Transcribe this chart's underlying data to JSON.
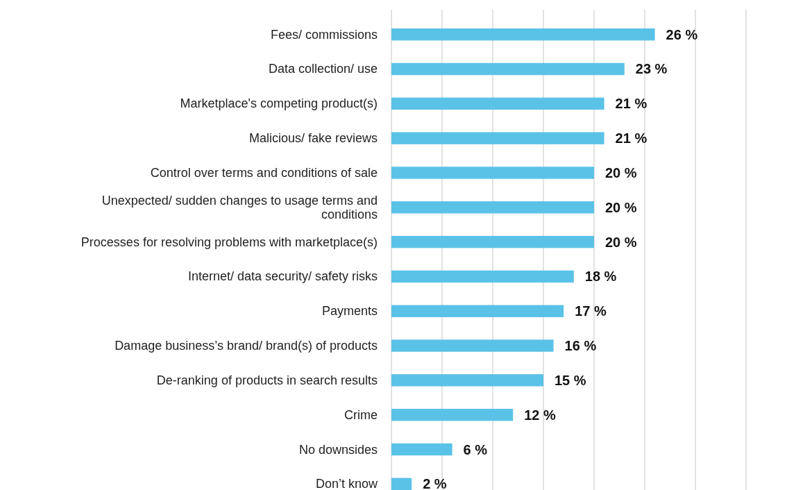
{
  "chart_data": {
    "type": "bar",
    "orientation": "horizontal",
    "categories": [
      "Fees/ commissions",
      "Data collection/ use",
      "Marketplace's competing product(s)",
      "Malicious/ fake reviews",
      "Control over terms and conditions of sale",
      "Unexpected/ sudden changes to usage terms and conditions",
      "Processes for resolving problems with marketplace(s)",
      "Internet/ data security/ safety risks",
      "Payments",
      "Damage business’s brand/ brand(s) of products",
      "De-ranking of products in search results",
      "Crime",
      "No downsides",
      "Don’t know"
    ],
    "values": [
      26,
      23,
      21,
      21,
      20,
      20,
      20,
      18,
      17,
      16,
      15,
      12,
      6,
      2
    ],
    "value_labels": [
      "26 %",
      "23 %",
      "21 %",
      "21 %",
      "20 %",
      "20 %",
      "20 %",
      "18 %",
      "17 %",
      "16 %",
      "15 %",
      "12 %",
      "6 %",
      "2 %"
    ],
    "color": "#5bc2e7",
    "xlim": [
      0,
      35
    ],
    "xticks": [
      {
        "value": 0,
        "label": null
      },
      {
        "value": 5,
        "label": null
      },
      {
        "value": 10,
        "label": null
      },
      {
        "value": 15,
        "label": null
      },
      {
        "value": 20,
        "label": null
      },
      {
        "value": 25,
        "label": null
      },
      {
        "value": 30,
        "label": null
      },
      {
        "value": 35,
        "label": null
      }
    ],
    "tick_labels": "y",
    "grid": "x"
  }
}
